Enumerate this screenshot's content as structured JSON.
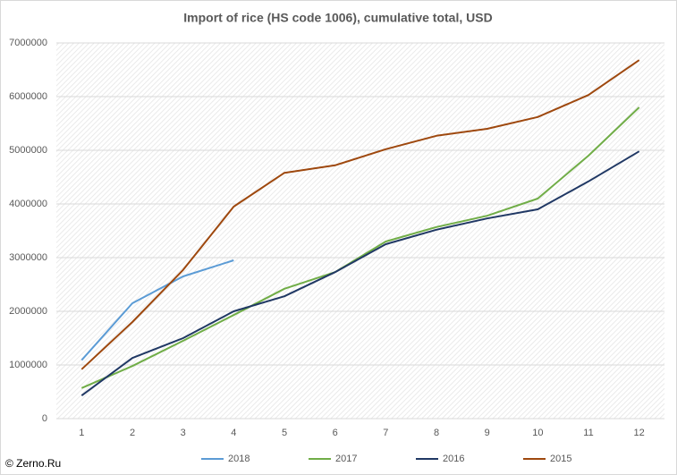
{
  "chart_data": {
    "type": "line",
    "title": "Import of rice (HS code 1006), cumulative total, USD",
    "source": "© Zerno.Ru",
    "categories": [
      "1",
      "2",
      "3",
      "4",
      "5",
      "6",
      "7",
      "8",
      "9",
      "10",
      "11",
      "12"
    ],
    "series": [
      {
        "name": "2018",
        "color": "#5b9bd5",
        "values": [
          1090000,
          2150000,
          2650000,
          2950000,
          null,
          null,
          null,
          null,
          null,
          null,
          null,
          null
        ]
      },
      {
        "name": "2017",
        "color": "#70ad47",
        "values": [
          570000,
          980000,
          1450000,
          1930000,
          2420000,
          2730000,
          3300000,
          3570000,
          3780000,
          4100000,
          4900000,
          5800000
        ]
      },
      {
        "name": "2016",
        "color": "#203864",
        "values": [
          430000,
          1130000,
          1500000,
          2000000,
          2280000,
          2730000,
          3250000,
          3520000,
          3730000,
          3900000,
          4420000,
          4980000
        ]
      },
      {
        "name": "2015",
        "color": "#9e480e",
        "values": [
          920000,
          1800000,
          2770000,
          3950000,
          4580000,
          4720000,
          5020000,
          5270000,
          5400000,
          5620000,
          6030000,
          6680000
        ]
      }
    ],
    "ylim": [
      0,
      7000000
    ],
    "yticks": [
      0,
      1000000,
      2000000,
      3000000,
      4000000,
      5000000,
      6000000,
      7000000
    ],
    "grid": true,
    "legend": "bottom"
  }
}
